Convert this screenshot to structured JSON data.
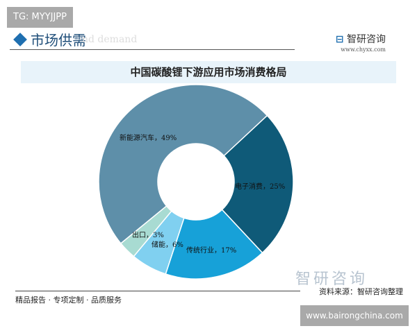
{
  "watermark_tag": "TG: MYYJJPP",
  "section": {
    "title": "市场供需",
    "subtitle_faded": "nd demand"
  },
  "brand": {
    "name": "智研咨询",
    "url": "www.chyxx.com",
    "watermark": "智研咨询"
  },
  "footer": {
    "slogan": "精品报告 · 专项定制 · 品质服务",
    "source": "资料来源：智研咨询整理",
    "site": "www.bairongchina.com"
  },
  "chart_data": {
    "type": "pie",
    "donut": true,
    "title": "中国碳酸锂下游应用市场消费格局",
    "slices": [
      {
        "label": "电子消费",
        "value": 25,
        "color": "#0f5a78",
        "text": "电子消费，25%"
      },
      {
        "label": "传统行业",
        "value": 17,
        "color": "#17a1d8",
        "text": "传统行业，17%"
      },
      {
        "label": "储能",
        "value": 6,
        "color": "#80d0f0",
        "text": "储能，6%"
      },
      {
        "label": "出口",
        "value": 3,
        "color": "#a8dbd2",
        "text": "出口，3%"
      },
      {
        "label": "新能源汽车",
        "value": 49,
        "color": "#5e8fa9",
        "text": "新能源汽车，49%"
      }
    ]
  }
}
